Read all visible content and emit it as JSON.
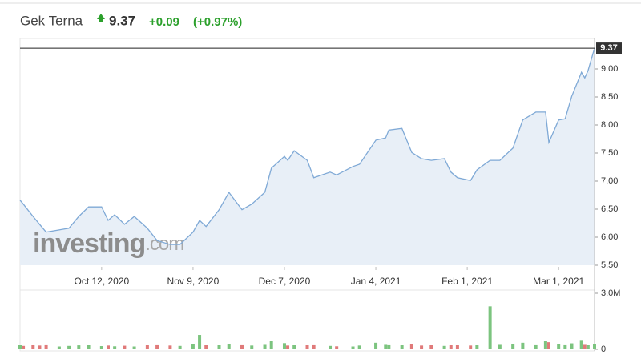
{
  "header": {
    "name": "Gek Terna",
    "change": "+0.09",
    "change_pct": "(+0.97%)",
    "up_color": "#2ca02c"
  },
  "chart_data": {
    "type": "line",
    "last_value": 9.37,
    "color": "#7fa9d6",
    "fill_color": "#e8eff7",
    "watermark": {
      "main": "investing",
      "suffix": ".com"
    },
    "x": [
      "2020-09-17",
      "2020-09-18",
      "2020-09-21",
      "2020-09-23",
      "2020-09-25",
      "2020-09-29",
      "2020-10-02",
      "2020-10-05",
      "2020-10-08",
      "2020-10-12",
      "2020-10-14",
      "2020-10-16",
      "2020-10-19",
      "2020-10-22",
      "2020-10-26",
      "2020-10-29",
      "2020-11-02",
      "2020-11-05",
      "2020-11-09",
      "2020-11-11",
      "2020-11-13",
      "2020-11-17",
      "2020-11-20",
      "2020-11-24",
      "2020-11-27",
      "2020-12-01",
      "2020-12-03",
      "2020-12-07",
      "2020-12-08",
      "2020-12-10",
      "2020-12-14",
      "2020-12-16",
      "2020-12-21",
      "2020-12-23",
      "2020-12-28",
      "2020-12-30",
      "2021-01-04",
      "2021-01-07",
      "2021-01-08",
      "2021-01-12",
      "2021-01-15",
      "2021-01-18",
      "2021-01-21",
      "2021-01-25",
      "2021-01-27",
      "2021-01-29",
      "2021-02-02",
      "2021-02-04",
      "2021-02-08",
      "2021-02-11",
      "2021-02-15",
      "2021-02-18",
      "2021-02-22",
      "2021-02-25",
      "2021-02-26",
      "2021-03-01",
      "2021-03-03",
      "2021-03-05",
      "2021-03-08",
      "2021-03-09",
      "2021-03-10",
      "2021-03-12"
    ],
    "values": [
      6.66,
      6.59,
      6.37,
      6.23,
      6.09,
      6.13,
      6.16,
      6.37,
      6.54,
      6.54,
      6.3,
      6.4,
      6.23,
      6.37,
      6.16,
      5.94,
      5.87,
      5.87,
      6.09,
      6.3,
      6.19,
      6.49,
      6.8,
      6.49,
      6.59,
      6.8,
      7.23,
      7.44,
      7.37,
      7.54,
      7.37,
      7.06,
      7.16,
      7.11,
      7.26,
      7.3,
      7.73,
      7.77,
      7.91,
      7.94,
      7.51,
      7.4,
      7.37,
      7.4,
      7.16,
      7.06,
      7.01,
      7.2,
      7.37,
      7.37,
      7.59,
      8.09,
      8.23,
      8.23,
      7.69,
      8.09,
      8.11,
      8.51,
      8.94,
      8.84,
      8.97,
      9.37
    ],
    "xlim": [
      "2020-09-17",
      "2021-03-12"
    ],
    "xticks": [
      {
        "value": "2020-10-12",
        "label": "Oct 12, 2020"
      },
      {
        "value": "2020-11-09",
        "label": "Nov 9, 2020"
      },
      {
        "value": "2020-12-07",
        "label": "Dec 7, 2020"
      },
      {
        "value": "2021-01-04",
        "label": "Jan 4, 2021"
      },
      {
        "value": "2021-02-01",
        "label": "Feb 1, 2021"
      },
      {
        "value": "2021-03-01",
        "label": "Mar 1, 2021"
      }
    ],
    "ylim": [
      5.5,
      9.5
    ],
    "yticks": [
      {
        "value": 5.5,
        "label": "5.50"
      },
      {
        "value": 6,
        "label": "6.00"
      },
      {
        "value": 6.5,
        "label": "6.50"
      },
      {
        "value": 7,
        "label": "7.00"
      },
      {
        "value": 7.5,
        "label": "7.50"
      },
      {
        "value": 8,
        "label": "8.00"
      },
      {
        "value": 8.5,
        "label": "8.50"
      },
      {
        "value": 9,
        "label": "9.00"
      }
    ],
    "grid": false,
    "volume": {
      "values": [
        250000,
        180000,
        220000,
        200000,
        260000,
        150000,
        180000,
        210000,
        230000,
        170000,
        200000,
        160000,
        190000,
        150000,
        220000,
        260000,
        200000,
        180000,
        300000,
        770000,
        240000,
        220000,
        300000,
        260000,
        200000,
        280000,
        450000,
        330000,
        200000,
        250000,
        220000,
        260000,
        180000,
        160000,
        150000,
        200000,
        350000,
        280000,
        260000,
        240000,
        300000,
        200000,
        220000,
        180000,
        250000,
        230000,
        200000,
        220000,
        2300000,
        280000,
        300000,
        350000,
        260000,
        450000,
        380000,
        300000,
        260000,
        320000,
        500000,
        280000,
        240000,
        300000
      ],
      "up_color": "#7cc47f",
      "down_color": "#e07a7a",
      "ylim": [
        0,
        3000000
      ],
      "yticks": [
        0,
        {
          "value": 3000000,
          "label": "3.0M"
        }
      ]
    }
  }
}
